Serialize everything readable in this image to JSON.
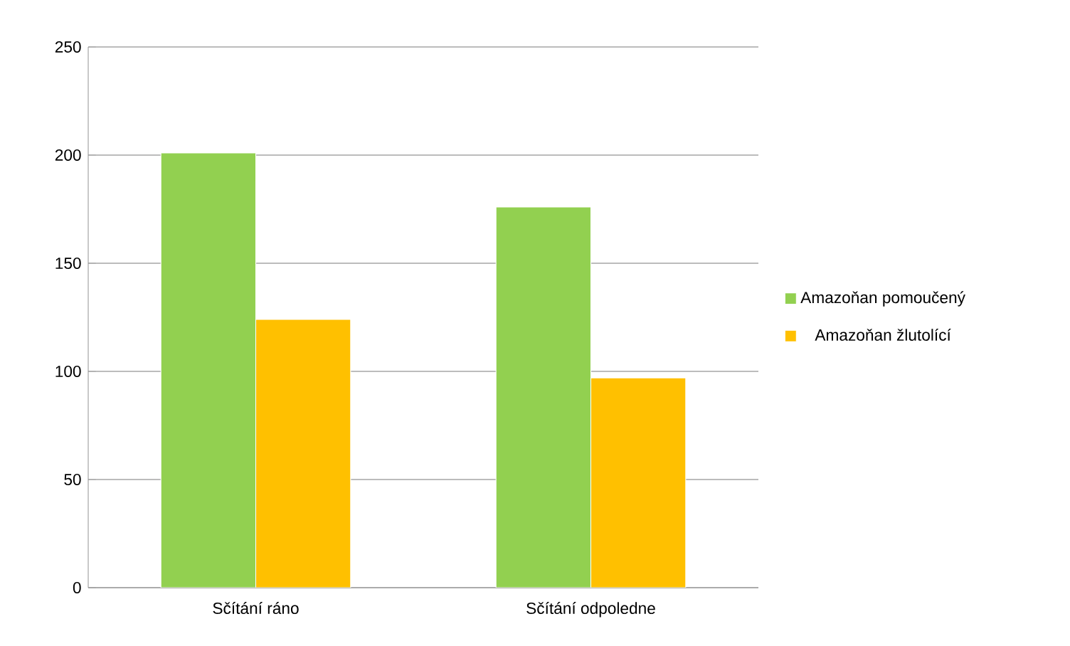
{
  "chart_data": {
    "type": "bar",
    "categories": [
      "Sčítání ráno",
      "Sčítání odpoledne"
    ],
    "series": [
      {
        "name": "Amazoňan pomoučený",
        "color": "#92d050",
        "values": [
          201,
          176
        ]
      },
      {
        "name": "Amazoňan žlutolící",
        "color": "#ffc000",
        "values": [
          124,
          97
        ]
      }
    ],
    "ylim": [
      0,
      250
    ],
    "yticks": [
      0,
      50,
      100,
      150,
      200,
      250
    ],
    "grid": "y",
    "legend": "right"
  }
}
